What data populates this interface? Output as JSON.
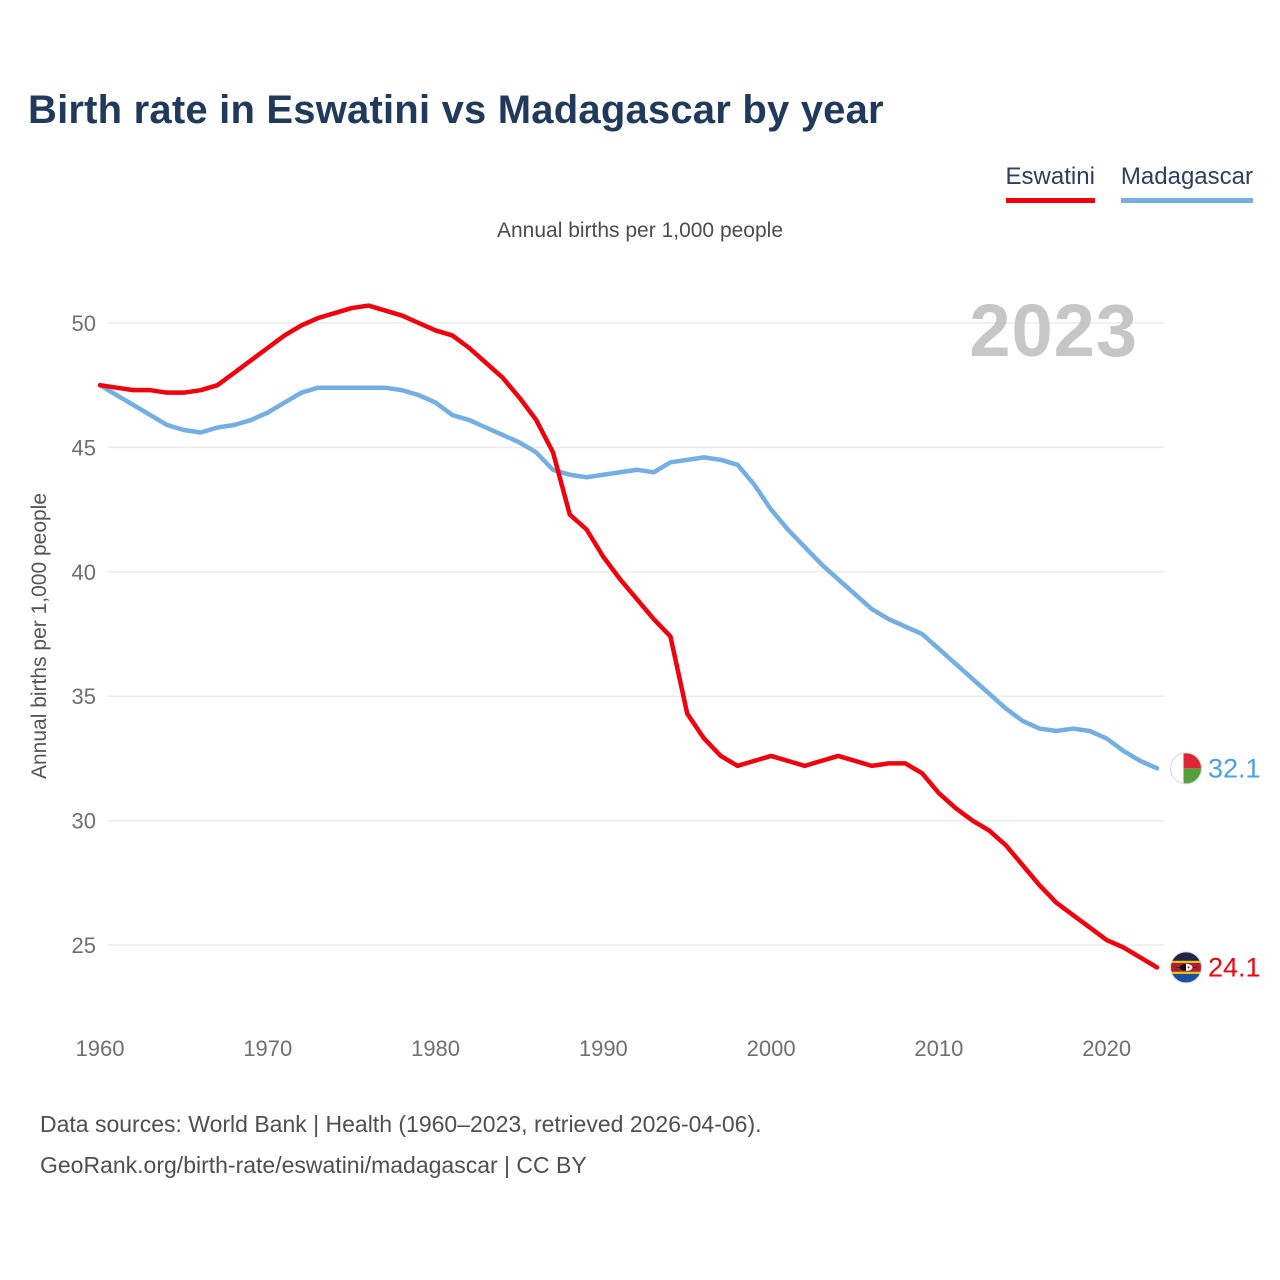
{
  "title": "Birth rate in Eswatini vs Madagascar by year",
  "subtitle": "Annual births per 1,000 people",
  "watermark_year": "2023",
  "legend": [
    {
      "label": "Eswatini",
      "color": "#f2000c"
    },
    {
      "label": "Madagascar",
      "color": "#74aee2"
    }
  ],
  "end_labels": [
    {
      "series": "Eswatini",
      "value": "24.1",
      "color": "#f2000c",
      "flag": "eswatini-flag"
    },
    {
      "series": "Madagascar",
      "value": "32.1",
      "color": "#4a9fe8",
      "flag": "madagascar-flag"
    }
  ],
  "footer": {
    "line1": "Data sources: World Bank | Health (1960–2023, retrieved 2026-04-06).",
    "line2": "GeoRank.org/birth-rate/eswatini/madagascar | CC BY"
  },
  "chart_data": {
    "type": "line",
    "title": "Birth rate in Eswatini vs Madagascar by year",
    "ylabel": "Annual births per 1,000 people",
    "xlabel": "",
    "grid": "horizontal",
    "legend_position": "top-right",
    "ylim": [
      22.5,
      51.8
    ],
    "xlim": [
      1960,
      2023
    ],
    "y_ticks": [
      25,
      30,
      35,
      40,
      45,
      50
    ],
    "x_ticks": [
      1960,
      1970,
      1980,
      1990,
      2000,
      2010,
      2020
    ],
    "x": [
      1960,
      1961,
      1962,
      1963,
      1964,
      1965,
      1966,
      1967,
      1968,
      1969,
      1970,
      1971,
      1972,
      1973,
      1974,
      1975,
      1976,
      1977,
      1978,
      1979,
      1980,
      1981,
      1982,
      1983,
      1984,
      1985,
      1986,
      1987,
      1988,
      1989,
      1990,
      1991,
      1992,
      1993,
      1994,
      1995,
      1996,
      1997,
      1998,
      1999,
      2000,
      2001,
      2002,
      2003,
      2004,
      2005,
      2006,
      2007,
      2008,
      2009,
      2010,
      2011,
      2012,
      2013,
      2014,
      2015,
      2016,
      2017,
      2018,
      2019,
      2020,
      2021,
      2022,
      2023
    ],
    "series": [
      {
        "name": "Eswatini",
        "color": "#f2000c",
        "final_value": 24.1,
        "values": [
          47.5,
          47.4,
          47.3,
          47.3,
          47.2,
          47.2,
          47.3,
          47.5,
          48.0,
          48.5,
          49.0,
          49.5,
          49.9,
          50.2,
          50.4,
          50.6,
          50.7,
          50.5,
          50.3,
          50.0,
          49.7,
          49.5,
          49.0,
          48.4,
          47.8,
          47.0,
          46.1,
          44.8,
          42.3,
          41.7,
          40.6,
          39.7,
          38.9,
          38.1,
          37.4,
          34.3,
          33.3,
          32.6,
          32.2,
          32.4,
          32.6,
          32.4,
          32.2,
          32.4,
          32.6,
          32.4,
          32.2,
          32.3,
          32.3,
          31.9,
          31.1,
          30.5,
          30.0,
          29.6,
          29.0,
          28.2,
          27.4,
          26.7,
          26.2,
          25.7,
          25.2,
          24.9,
          24.5,
          24.1
        ]
      },
      {
        "name": "Madagascar",
        "color": "#74aee2",
        "final_value": 32.1,
        "values": [
          47.5,
          47.1,
          46.7,
          46.3,
          45.9,
          45.7,
          45.6,
          45.8,
          45.9,
          46.1,
          46.4,
          46.8,
          47.2,
          47.4,
          47.4,
          47.4,
          47.4,
          47.4,
          47.3,
          47.1,
          46.8,
          46.3,
          46.1,
          45.8,
          45.5,
          45.2,
          44.8,
          44.1,
          43.9,
          43.8,
          43.9,
          44.0,
          44.1,
          44.0,
          44.4,
          44.5,
          44.6,
          44.5,
          44.3,
          43.5,
          42.5,
          41.7,
          41.0,
          40.3,
          39.7,
          39.1,
          38.5,
          38.1,
          37.8,
          37.5,
          36.9,
          36.3,
          35.7,
          35.1,
          34.5,
          34.0,
          33.7,
          33.6,
          33.7,
          33.6,
          33.3,
          32.8,
          32.4,
          32.1
        ]
      }
    ]
  }
}
